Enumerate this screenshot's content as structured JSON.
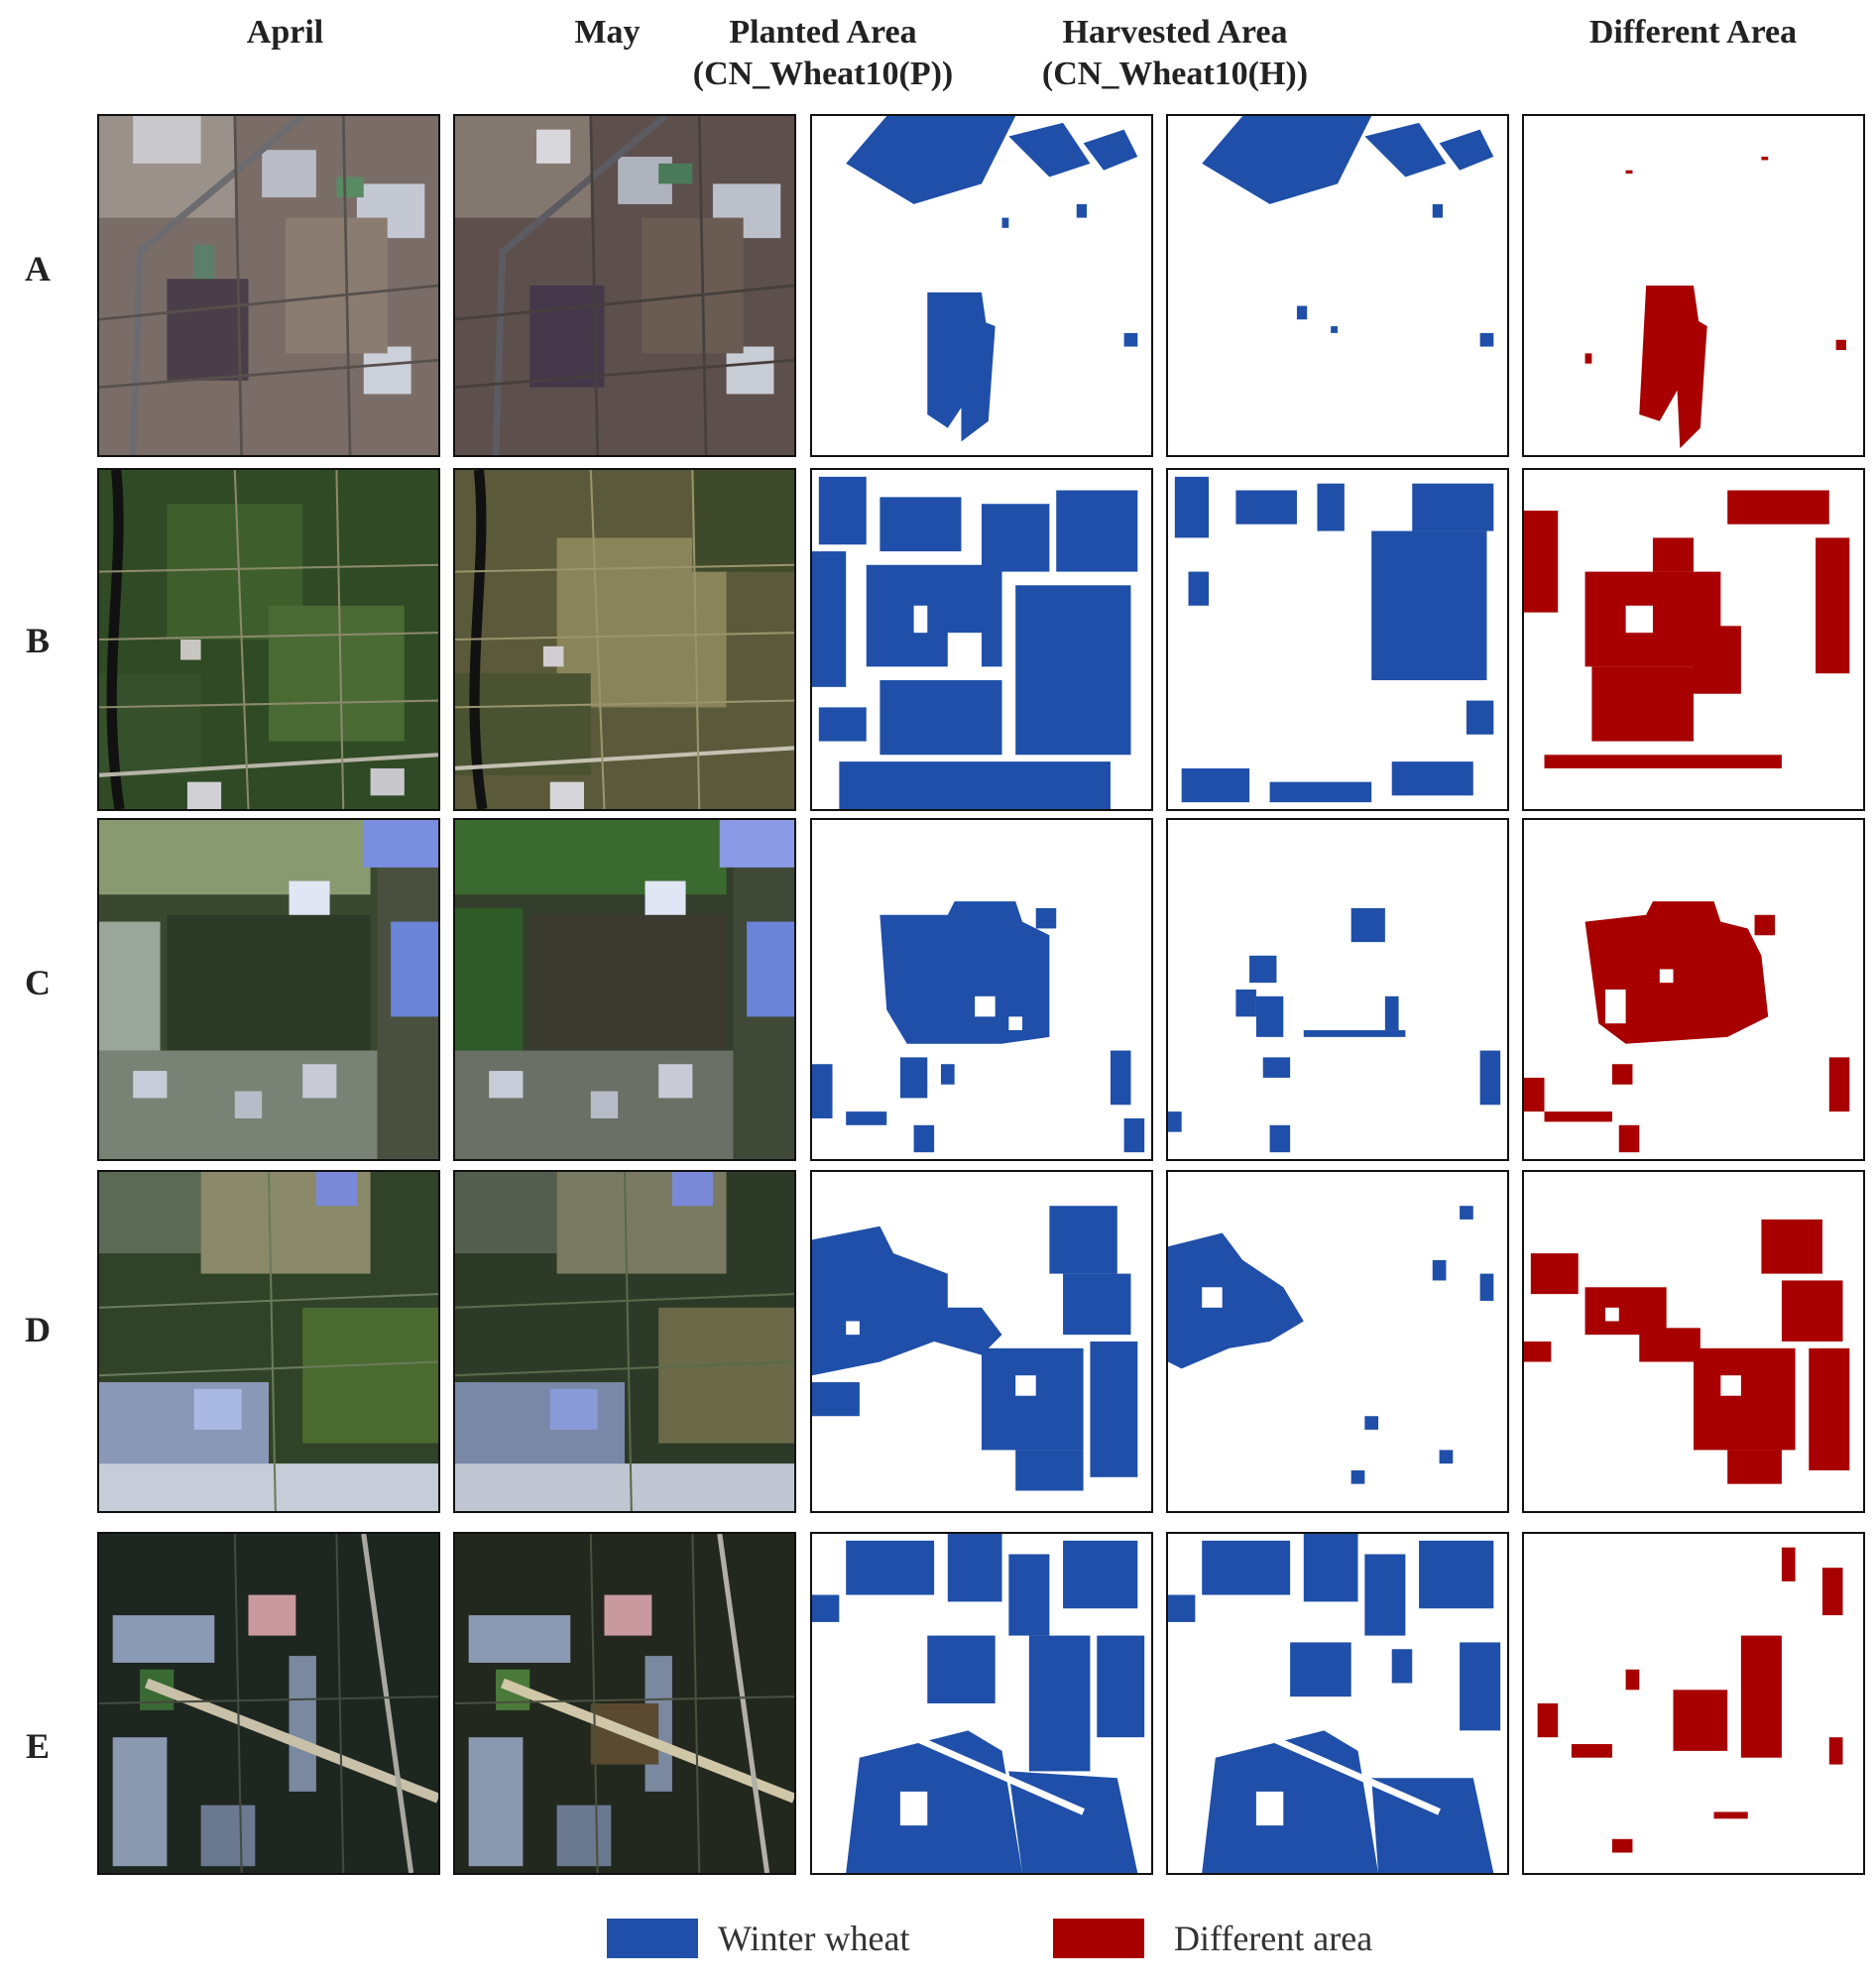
{
  "columns": {
    "april": "April",
    "may": "May",
    "planted_line1": "Planted Area",
    "planted_line2": "(CN_Wheat10(P))",
    "harvested_line1": "Harvested Area",
    "harvested_line2": "(CN_Wheat10(H))",
    "different": "Different Area"
  },
  "rows": [
    "A",
    "B",
    "C",
    "D",
    "E"
  ],
  "legend": {
    "winter_wheat": "Winter wheat",
    "different_area": "Different area"
  },
  "colors": {
    "winter_wheat": "#1f4fa8",
    "different_area": "#a80000",
    "frame": "#111111",
    "background": "#ffffff"
  }
}
